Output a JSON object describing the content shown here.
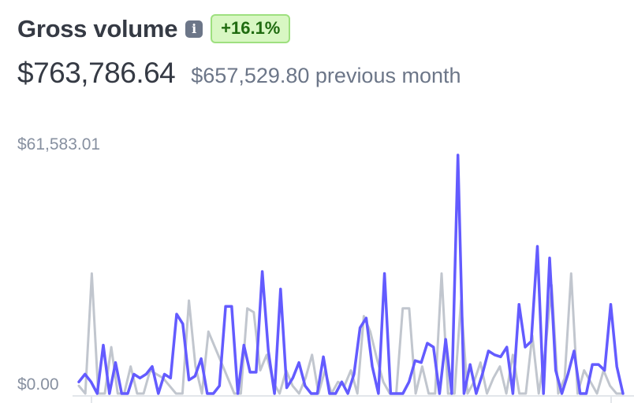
{
  "header": {
    "title": "Gross volume",
    "info_icon": "info-icon",
    "change_badge": "+16.1%"
  },
  "summary": {
    "current": "$763,786.64",
    "previous": "$657,529.80 previous month"
  },
  "colors": {
    "current_series": "#635bff",
    "previous_series": "#c1c6ce",
    "badge_bg": "#d8f7c3",
    "badge_text": "#1f6b10"
  },
  "chart_data": {
    "type": "line",
    "title": "",
    "xlabel": "",
    "ylabel": "",
    "y_tick_labels": [
      "$61,583.01",
      "$0.00"
    ],
    "ylim": [
      0,
      61583.01
    ],
    "grid": false,
    "legend": "none",
    "series": [
      {
        "name": "",
        "role": "previous",
        "values": [
          2000,
          0,
          31000,
          0,
          0,
          12000,
          0,
          0,
          7000,
          0,
          0,
          6000,
          5000,
          4000,
          2000,
          0,
          0,
          24000,
          7000,
          0,
          16000,
          12000,
          8000,
          4000,
          0,
          0,
          22000,
          21000,
          6000,
          10000,
          3000,
          0,
          6000,
          2000,
          0,
          4000,
          10000,
          0,
          6000,
          0,
          3000,
          2000,
          6000,
          0,
          20000,
          16000,
          9000,
          3000,
          0,
          0,
          22000,
          22000,
          0,
          7000,
          0,
          0,
          31000,
          0,
          0,
          24000,
          0,
          3000,
          8000,
          0,
          4000,
          7000,
          0,
          10000,
          0,
          0,
          15000,
          0,
          11000,
          28000,
          0,
          4000,
          31000,
          0,
          6000,
          3000,
          0,
          6000,
          2000,
          0,
          0
        ]
      },
      {
        "name": "",
        "role": "current",
        "values": [
          3000,
          5000,
          3000,
          0,
          12500,
          0,
          8000,
          0,
          0,
          5000,
          4000,
          5000,
          7000,
          0,
          5000,
          4000,
          20500,
          18000,
          3500,
          4500,
          9000,
          0,
          0,
          2000,
          22500,
          22500,
          0,
          12500,
          5500,
          5500,
          31500,
          11000,
          0,
          27000,
          1500,
          4000,
          8000,
          2000,
          0,
          0,
          9500,
          0,
          0,
          3000,
          0,
          5000,
          17000,
          19500,
          7000,
          0,
          31000,
          0,
          0,
          0,
          3000,
          8500,
          8000,
          13000,
          12000,
          0,
          14000,
          0,
          61583.01,
          0,
          7500,
          0,
          5000,
          11000,
          10000,
          9500,
          12000,
          0,
          23000,
          12000,
          13500,
          38000,
          0,
          35000,
          6000,
          0,
          5000,
          11000,
          0,
          0,
          7500,
          7500,
          6000,
          23000,
          7000,
          0
        ]
      }
    ]
  }
}
